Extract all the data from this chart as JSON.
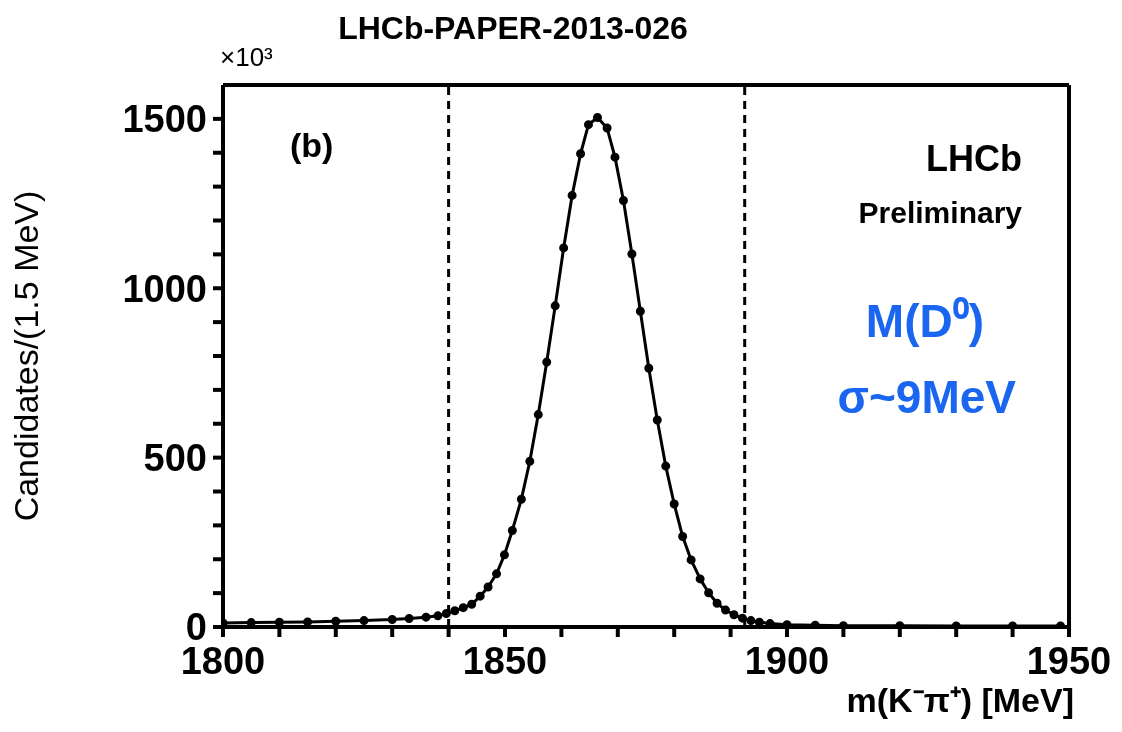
{
  "chart_data": {
    "type": "line",
    "title": "LHCb-PAPER-2013-026",
    "xlabel": "m(K⁻π⁺) [MeV]",
    "ylabel": "Candidates/(1.5 MeV)",
    "annotations": [
      "(b)",
      "LHCb",
      "Preliminary",
      "M(D⁰)",
      "σ~9MeV",
      "×10³"
    ],
    "x": [
      1800,
      1805,
      1810,
      1815,
      1820,
      1825,
      1830,
      1833,
      1836,
      1838.1,
      1839.6,
      1841.1,
      1842.6,
      1844.1,
      1845.6,
      1847,
      1848.5,
      1849.9,
      1851.3,
      1852.9,
      1854.4,
      1855.9,
      1857.4,
      1858.9,
      1860.4,
      1861.9,
      1863.4,
      1864.8,
      1866.4,
      1868.1,
      1869.5,
      1871,
      1872.5,
      1874,
      1875.5,
      1877,
      1878.5,
      1880,
      1881.5,
      1883,
      1884.6,
      1886.1,
      1887.6,
      1889.1,
      1890.6,
      1892.1,
      1893.6,
      1895.1,
      1897,
      1900,
      1905,
      1910,
      1920,
      1930,
      1940,
      1948.5
    ],
    "series": [
      {
        "color": "#000000",
        "values": [
          12,
          13,
          14,
          15,
          17,
          19,
          22,
          25,
          29,
          33,
          40,
          48,
          57,
          67,
          91,
          118,
          157,
          213,
          285,
          377,
          489,
          627,
          782,
          948,
          1119,
          1274,
          1397,
          1483,
          1504,
          1473,
          1387,
          1259,
          1101,
          932,
          764,
          611,
          475,
          363,
          267,
          198,
          142,
          101,
          70,
          50,
          36,
          26,
          19,
          14,
          10,
          7,
          5,
          4,
          4,
          3,
          3,
          3
        ]
      }
    ],
    "xlim": [
      1800,
      1950
    ],
    "xticks": [
      1800,
      {
        "value": 1810,
        "label": null
      },
      {
        "value": 1820,
        "label": null
      },
      {
        "value": 1830,
        "label": null
      },
      {
        "value": 1840,
        "label": null
      },
      1850,
      {
        "value": 1860,
        "label": null
      },
      {
        "value": 1870,
        "label": null
      },
      {
        "value": 1880,
        "label": null
      },
      {
        "value": 1890,
        "label": null
      },
      1900,
      {
        "value": 1910,
        "label": null
      },
      {
        "value": 1920,
        "label": null
      },
      {
        "value": 1930,
        "label": null
      },
      {
        "value": 1940,
        "label": null
      },
      1950
    ],
    "ylim": [
      0,
      1600
    ],
    "yticks": [
      0,
      {
        "value": 100,
        "label": null
      },
      {
        "value": 200,
        "label": null
      },
      {
        "value": 300,
        "label": null
      },
      {
        "value": 400,
        "label": null
      },
      500,
      {
        "value": 600,
        "label": null
      },
      {
        "value": 700,
        "label": null
      },
      {
        "value": 800,
        "label": null
      },
      {
        "value": 900,
        "label": null
      },
      1000,
      {
        "value": 1100,
        "label": null
      },
      {
        "value": 1200,
        "label": null
      },
      {
        "value": 1300,
        "label": null
      },
      {
        "value": 1400,
        "label": null
      },
      1500
    ],
    "ref_lines": [
      {
        "axis": "x",
        "value": 1840,
        "color": "#000000",
        "line_style": "dashed"
      },
      {
        "axis": "x",
        "value": 1892.5,
        "color": "#000000",
        "line_style": "dashed"
      }
    ],
    "marker": "circle",
    "line_style": "solid",
    "grid": false,
    "legend": false
  }
}
